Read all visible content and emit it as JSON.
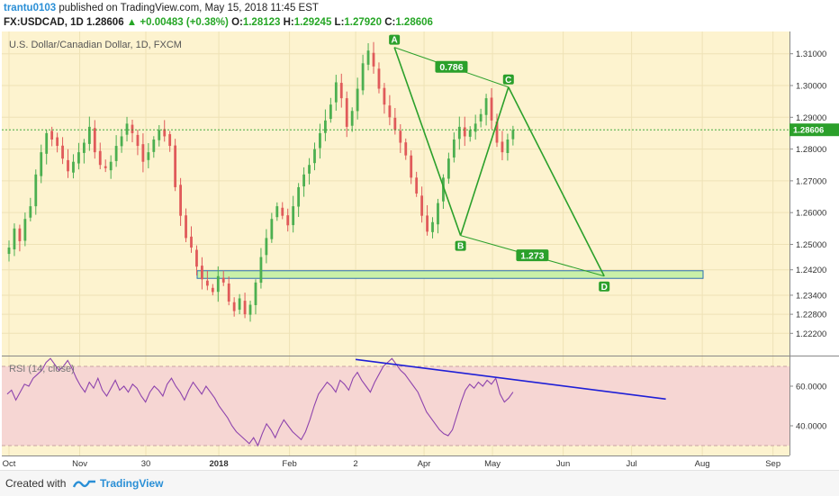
{
  "header": {
    "user": "trantu0103",
    "published": "published on TradingView.com, May 15, 2018 11:45 EST",
    "symbol": "FX:USDCAD, 1D",
    "last": "1.28606",
    "change": "+0.00483 (+0.38%)",
    "o_label": "O:",
    "o": "1.28123",
    "h_label": "H:",
    "h": "1.29245",
    "l_label": "L:",
    "l": "1.27920",
    "c_label": "C:",
    "c": "1.28606"
  },
  "chart_title": "U.S. Dollar/Canadian Dollar, 1D, FXCM",
  "rsi_label": "RSI (14, close)",
  "colors": {
    "background": "#fdf3cf",
    "bull": "#4caf50",
    "bear": "#e05a5a",
    "pattern": "#2ba02b",
    "rsi": "#8e44ad",
    "rsi_band": "#f6d6d3",
    "trendline": "#1f1fd6",
    "zone": "#c9f0a8"
  },
  "footer": {
    "created": "Created with",
    "brand": "TradingView"
  },
  "chart_data": {
    "type": "candlestick",
    "price_ylim": [
      1.215,
      1.317
    ],
    "price_ticks": [
      "1.31000",
      "1.30000",
      "1.29000",
      "1.28000",
      "1.27000",
      "1.26000",
      "1.25000",
      "1.24200",
      "1.23400",
      "1.22800",
      "1.22200"
    ],
    "last_price": "1.28606",
    "x_ticks": [
      "Oct",
      "Nov",
      "30",
      "2018",
      "Feb",
      "2",
      "Apr",
      "May",
      "Jun",
      "Jul",
      "Aug",
      "Sep"
    ],
    "close_series": [
      1.249,
      1.255,
      1.251,
      1.258,
      1.262,
      1.272,
      1.279,
      1.285,
      1.283,
      1.281,
      1.277,
      1.273,
      1.276,
      1.279,
      1.282,
      1.287,
      1.279,
      1.275,
      1.274,
      1.276,
      1.281,
      1.284,
      1.288,
      1.285,
      1.281,
      1.276,
      1.279,
      1.283,
      1.286,
      1.284,
      1.281,
      1.268,
      1.259,
      1.252,
      1.249,
      1.243,
      1.239,
      1.237,
      1.235,
      1.24,
      1.238,
      1.232,
      1.229,
      1.233,
      1.228,
      1.231,
      1.238,
      1.246,
      1.252,
      1.258,
      1.262,
      1.259,
      1.256,
      1.262,
      1.268,
      1.272,
      1.275,
      1.28,
      1.285,
      1.289,
      1.294,
      1.301,
      1.296,
      1.287,
      1.292,
      1.299,
      1.307,
      1.311,
      1.306,
      1.299,
      1.294,
      1.29,
      1.286,
      1.282,
      1.278,
      1.271,
      1.266,
      1.259,
      1.254,
      1.257,
      1.263,
      1.271,
      1.277,
      1.283,
      1.287,
      1.284,
      1.286,
      1.288,
      1.291,
      1.296,
      1.289,
      1.282,
      1.279,
      1.283,
      1.286
    ],
    "pattern_points": [
      {
        "label": "A",
        "date": "2018-03-19",
        "price": 1.312
      },
      {
        "label": "B",
        "date": "2018-04-17",
        "price": 1.2528
      },
      {
        "label": "C",
        "date": "2018-05-08",
        "price": 1.2995
      },
      {
        "label": "D",
        "date": "2018-06-19",
        "price": 1.24
      }
    ],
    "fib_ratios": [
      {
        "label": "0.786",
        "between": "A-C"
      },
      {
        "label": "1.273",
        "between": "B-D"
      }
    ],
    "support_zone": {
      "from": 1.2393,
      "to": 1.2417
    },
    "rsi": {
      "period": 14,
      "ylim": [
        25,
        75
      ],
      "ticks": [
        "60.0000",
        "40.0000"
      ],
      "bands": [
        70,
        30
      ],
      "series": [
        56,
        58,
        53,
        57,
        61,
        60,
        64,
        66,
        68,
        72,
        74,
        71,
        68,
        70,
        73,
        69,
        64,
        60,
        57,
        62,
        59,
        64,
        58,
        55,
        59,
        63,
        58,
        60,
        57,
        61,
        59,
        55,
        52,
        57,
        60,
        58,
        55,
        61,
        64,
        60,
        57,
        53,
        58,
        62,
        59,
        56,
        60,
        57,
        54,
        50,
        47,
        44,
        40,
        37,
        35,
        33,
        31,
        34,
        30,
        36,
        41,
        38,
        34,
        39,
        43,
        40,
        37,
        35,
        33,
        37,
        43,
        50,
        56,
        59,
        62,
        60,
        57,
        63,
        61,
        58,
        64,
        67,
        63,
        60,
        57,
        62,
        66,
        70,
        72,
        74,
        71,
        68,
        66,
        63,
        60,
        57,
        52,
        47,
        44,
        41,
        38,
        36,
        35,
        38,
        45,
        52,
        58,
        61,
        59,
        62,
        60,
        63,
        61,
        64,
        56,
        52,
        54,
        57
      ],
      "trendline": [
        {
          "date": "2018-03-02",
          "value": 73.5
        },
        {
          "date": "2018-07-16",
          "value": 53.5
        }
      ]
    }
  }
}
